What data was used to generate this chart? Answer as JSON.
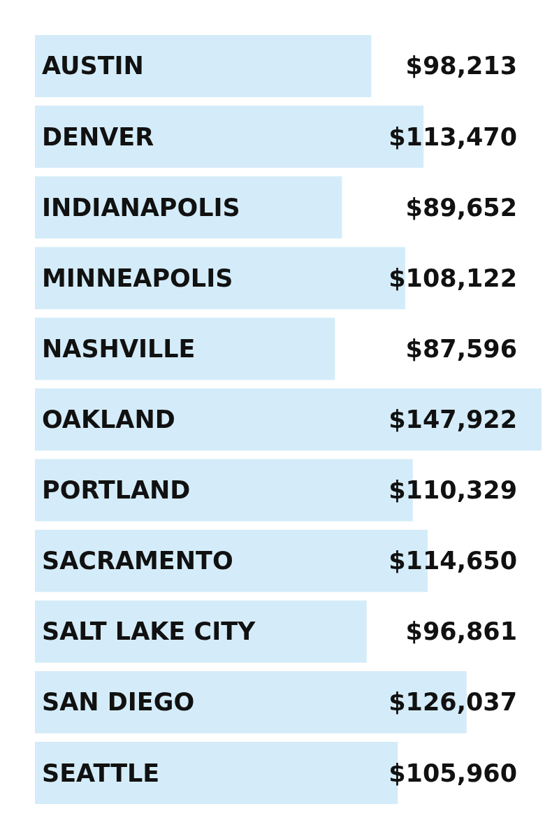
{
  "chart_data": {
    "type": "bar",
    "orientation": "horizontal",
    "categories": [
      "AUSTIN",
      "DENVER",
      "INDIANAPOLIS",
      "MINNEAPOLIS",
      "NASHVILLE",
      "OAKLAND",
      "PORTLAND",
      "SACRAMENTO",
      "SALT LAKE CITY",
      "SAN DIEGO",
      "SEATTLE"
    ],
    "values": [
      98213,
      113470,
      89652,
      108122,
      87596,
      147922,
      110329,
      114650,
      96861,
      126037,
      105960
    ],
    "value_labels": [
      "$98,213",
      "$113,470",
      "$89,652",
      "$108,122",
      "$87,596",
      "$147,922",
      "$110,329",
      "$114,650",
      "$96,861",
      "$126,037",
      "$105,960"
    ],
    "color": "#d4ecf9"
  }
}
